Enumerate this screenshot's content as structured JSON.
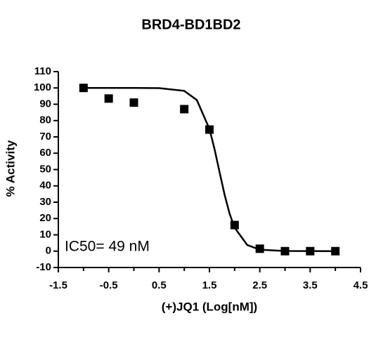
{
  "chart_data": {
    "type": "scatter",
    "title": "BRD4-BD1BD2",
    "xlabel": "(+)JQ1 (Log[nM])",
    "ylabel": "% Activity",
    "annotation": "IC50= 49 nM",
    "x": [
      -1,
      -0.5,
      0,
      1,
      1.5,
      2,
      2.5,
      3,
      3.5,
      4
    ],
    "values": [
      100,
      93.5,
      91,
      87,
      74.5,
      16,
      1.5,
      0,
      0,
      0
    ],
    "color": "#000000",
    "fit": {
      "x": [
        -1,
        0,
        0.5,
        1,
        1.25,
        1.5,
        1.6,
        1.7,
        1.8,
        1.9,
        2,
        2.25,
        2.5,
        3,
        4
      ],
      "values": [
        100,
        100,
        99.9,
        98.2,
        92.6,
        74.9,
        62.7,
        48.6,
        34.7,
        23,
        14.4,
        3.8,
        0.9,
        0.1,
        0
      ],
      "color": "#000000"
    },
    "xlim": [
      -1.5,
      4.5
    ],
    "xticks": [
      -1.5,
      -0.5,
      0.5,
      1.5,
      2.5,
      3.5,
      4.5
    ],
    "x_minor_ticks": [
      -1,
      0,
      1,
      2,
      3,
      4
    ],
    "ylim": [
      -10,
      110
    ],
    "yticks": [
      -10,
      0,
      10,
      20,
      30,
      40,
      50,
      60,
      70,
      80,
      90,
      100,
      110
    ]
  }
}
